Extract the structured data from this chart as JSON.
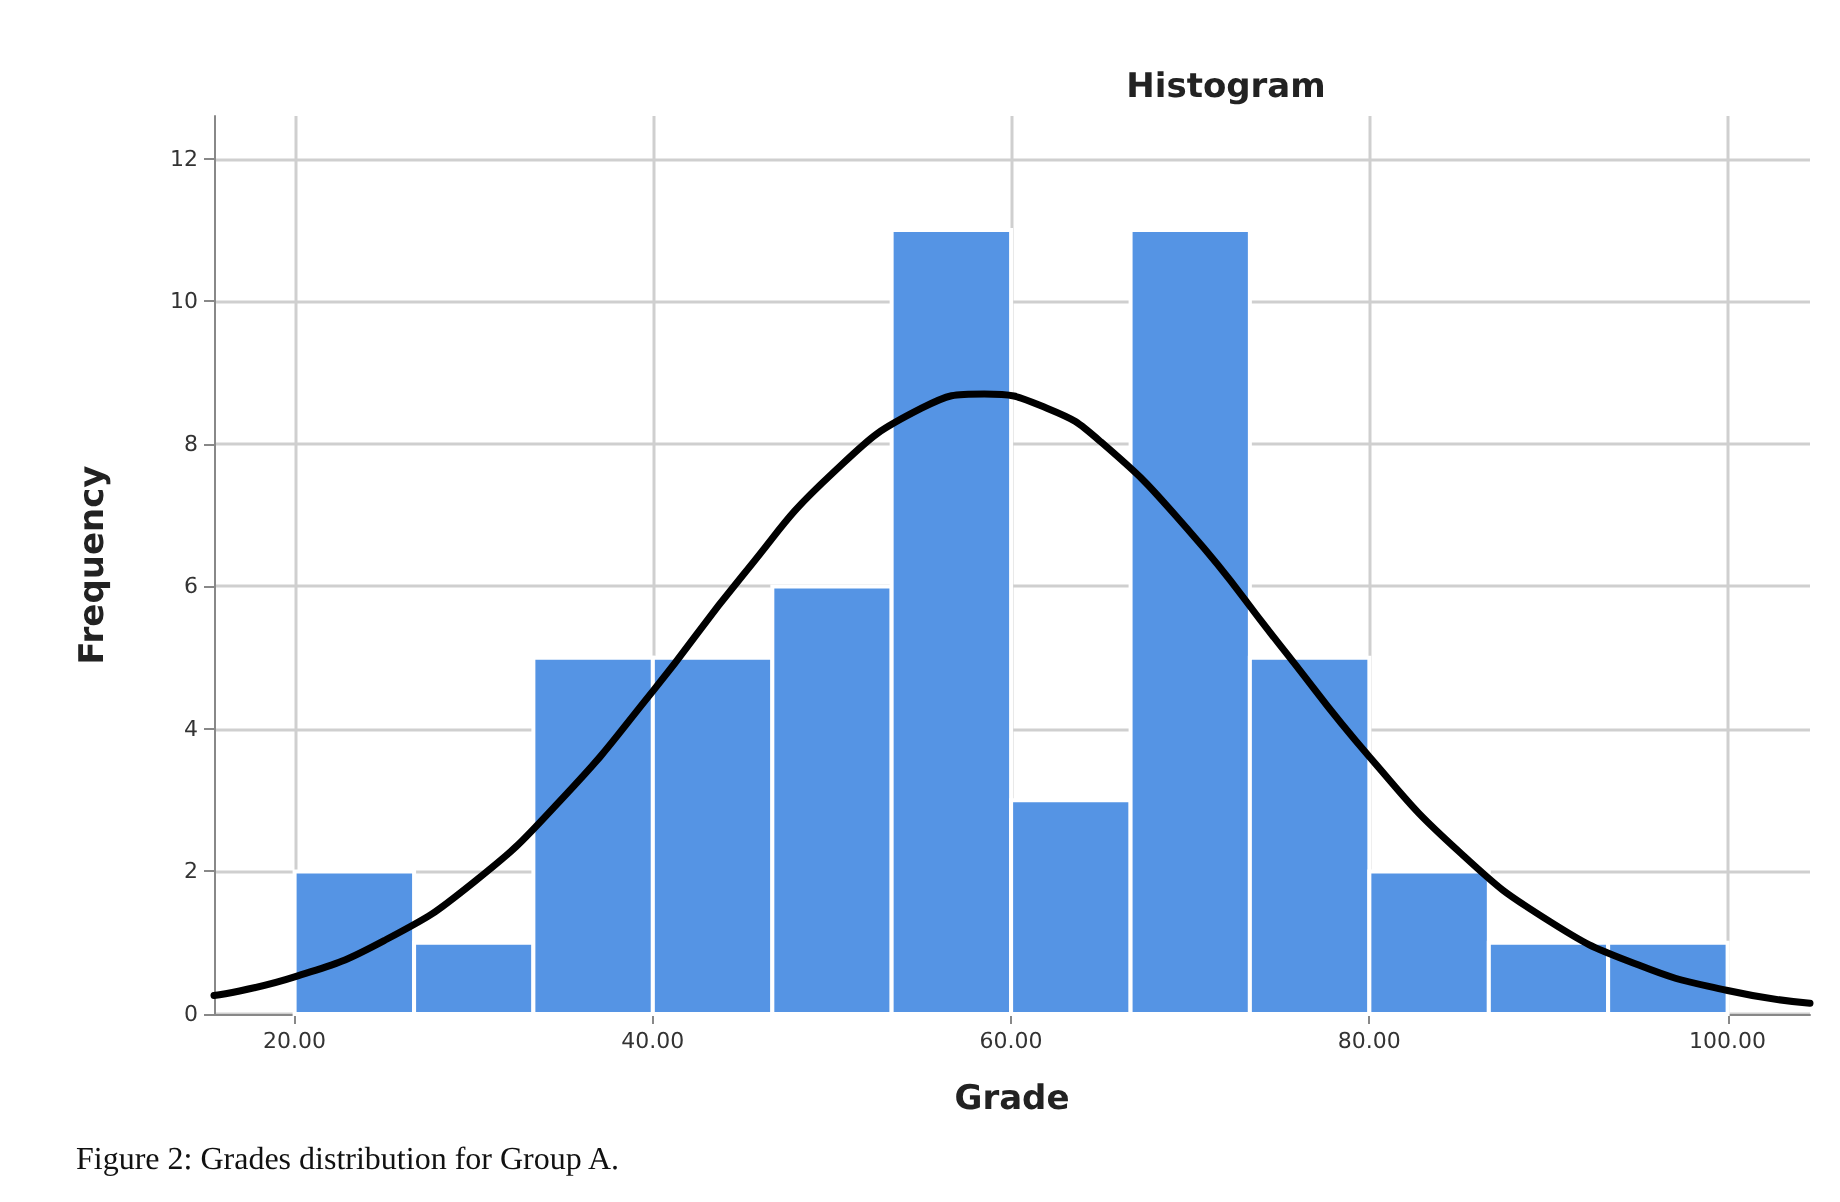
{
  "chart_data": {
    "type": "histogram",
    "title": "Histogram",
    "xlabel": "Grade",
    "ylabel": "Frequency",
    "annotations": [
      "Figure 2: Grades distribution for Group A."
    ],
    "bins": [
      20,
      26.67,
      33.33,
      40,
      46.67,
      53.33,
      60,
      66.67,
      73.33,
      80,
      86.67,
      93.33,
      100
    ],
    "values": [
      2,
      1,
      5,
      5,
      6,
      11,
      3,
      11,
      5,
      2,
      1,
      1
    ],
    "color": "#5594e4",
    "series": [
      {
        "type": "line",
        "color": "#000000",
        "x": [
          15.5,
          20,
          25,
          30,
          35,
          40,
          45,
          50,
          55,
          58.5,
          62,
          65,
          70,
          75,
          80,
          85,
          90,
          95,
          100,
          104.6
        ],
        "values": [
          0.26,
          0.52,
          1.03,
          1.85,
          3.04,
          4.53,
          6.15,
          7.58,
          8.5,
          8.7,
          8.5,
          8.03,
          6.76,
          5.18,
          3.61,
          2.28,
          1.31,
          0.69,
          0.33,
          0.15
        ]
      }
    ],
    "xlim": [
      15.5,
      104.6
    ],
    "xticks": [
      {
        "value": 20,
        "label": "20.00"
      },
      {
        "value": 40,
        "label": "40.00"
      },
      {
        "value": 60,
        "label": "60.00"
      },
      {
        "value": 80,
        "label": "80.00"
      },
      {
        "value": 100,
        "label": "100.00"
      }
    ],
    "ylim": [
      0,
      12.6
    ],
    "yticks": [
      0,
      2,
      4,
      6,
      8,
      10,
      12
    ],
    "grid": true,
    "marker": "none",
    "line_style": "solid"
  }
}
